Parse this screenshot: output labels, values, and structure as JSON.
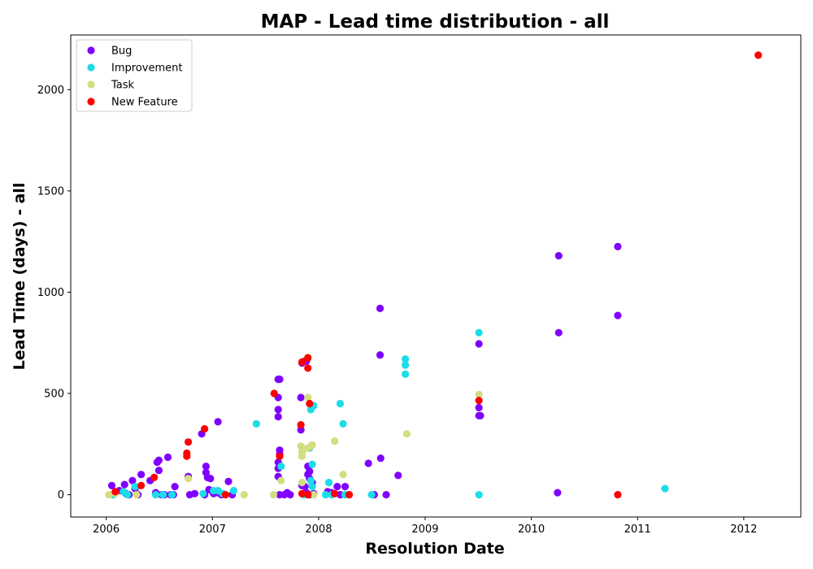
{
  "chart_data": {
    "type": "scatter",
    "title": "MAP - Lead time distribution - all",
    "xlabel": "Resolution Date",
    "ylabel": "Lead Time (days) - all",
    "xlim": [
      "2005-09-01",
      "2012-07-15"
    ],
    "ylim": [
      -110,
      2270
    ],
    "x_ticks": [
      "2006",
      "2007",
      "2008",
      "2009",
      "2010",
      "2011",
      "2012"
    ],
    "y_ticks": [
      "0",
      "500",
      "1000",
      "1500",
      "2000"
    ],
    "y_tick_values": [
      0,
      500,
      1000,
      1500,
      2000
    ],
    "grid": false,
    "legend_position": "top-left",
    "series": [
      {
        "name": "Bug",
        "color": "#8000ff",
        "points": [
          [
            "2006-01-20",
            45
          ],
          [
            "2006-02-15",
            20
          ],
          [
            "2006-03-05",
            50
          ],
          [
            "2006-03-10",
            5
          ],
          [
            "2006-03-20",
            0
          ],
          [
            "2006-04-01",
            70
          ],
          [
            "2006-04-10",
            30
          ],
          [
            "2006-04-20",
            0
          ],
          [
            "2006-05-01",
            100
          ],
          [
            "2006-06-01",
            70
          ],
          [
            "2006-06-20",
            10
          ],
          [
            "2006-06-25",
            160
          ],
          [
            "2006-07-01",
            170
          ],
          [
            "2006-07-01",
            120
          ],
          [
            "2006-07-10",
            0
          ],
          [
            "2006-07-20",
            0
          ],
          [
            "2006-08-01",
            185
          ],
          [
            "2006-08-10",
            0
          ],
          [
            "2006-08-20",
            0
          ],
          [
            "2006-08-25",
            40
          ],
          [
            "2006-10-10",
            90
          ],
          [
            "2006-10-15",
            0
          ],
          [
            "2006-11-01",
            5
          ],
          [
            "2006-11-25",
            300
          ],
          [
            "2006-12-05",
            0
          ],
          [
            "2006-12-10",
            140
          ],
          [
            "2006-12-10",
            110
          ],
          [
            "2006-12-15",
            85
          ],
          [
            "2006-12-20",
            25
          ],
          [
            "2006-12-25",
            80
          ],
          [
            "2007-01-05",
            5
          ],
          [
            "2007-01-20",
            360
          ],
          [
            "2007-01-20",
            10
          ],
          [
            "2007-02-01",
            0
          ],
          [
            "2007-02-25",
            65
          ],
          [
            "2007-03-10",
            0
          ],
          [
            "2007-08-15",
            570
          ],
          [
            "2007-08-20",
            570
          ],
          [
            "2007-08-15",
            480
          ],
          [
            "2007-08-15",
            420
          ],
          [
            "2007-08-15",
            385
          ],
          [
            "2007-08-20",
            220
          ],
          [
            "2007-08-20",
            200
          ],
          [
            "2007-08-15",
            160
          ],
          [
            "2007-08-15",
            130
          ],
          [
            "2007-08-15",
            90
          ],
          [
            "2007-08-20",
            0
          ],
          [
            "2007-09-05",
            0
          ],
          [
            "2007-09-15",
            10
          ],
          [
            "2007-09-25",
            0
          ],
          [
            "2007-11-01",
            320
          ],
          [
            "2007-11-01",
            480
          ],
          [
            "2007-11-05",
            650
          ],
          [
            "2007-11-15",
            660
          ],
          [
            "2007-11-20",
            660
          ],
          [
            "2007-11-25",
            140
          ],
          [
            "2007-11-25",
            100
          ],
          [
            "2007-12-01",
            115
          ],
          [
            "2007-12-01",
            80
          ],
          [
            "2007-11-05",
            45
          ],
          [
            "2007-11-15",
            40
          ],
          [
            "2007-11-20",
            10
          ],
          [
            "2007-12-01",
            0
          ],
          [
            "2007-12-10",
            60
          ],
          [
            "2007-12-15",
            5
          ],
          [
            "2008-02-01",
            15
          ],
          [
            "2008-02-15",
            10
          ],
          [
            "2008-03-05",
            40
          ],
          [
            "2008-03-15",
            0
          ],
          [
            "2008-04-01",
            40
          ],
          [
            "2008-06-20",
            155
          ],
          [
            "2008-07-10",
            0
          ],
          [
            "2008-07-30",
            920
          ],
          [
            "2008-07-30",
            690
          ],
          [
            "2008-08-01",
            180
          ],
          [
            "2008-08-20",
            0
          ],
          [
            "2008-09-30",
            95
          ],
          [
            "2009-07-05",
            745
          ],
          [
            "2009-07-05",
            430
          ],
          [
            "2009-07-05",
            390
          ],
          [
            "2009-07-10",
            390
          ],
          [
            "2010-04-05",
            1180
          ],
          [
            "2010-04-05",
            800
          ],
          [
            "2010-04-01",
            10
          ],
          [
            "2010-10-25",
            1225
          ],
          [
            "2010-10-25",
            885
          ]
        ]
      },
      {
        "name": "Improvement",
        "color": "#1cdce8",
        "points": [
          [
            "2006-01-25",
            0
          ],
          [
            "2006-03-01",
            15
          ],
          [
            "2006-03-15",
            0
          ],
          [
            "2006-04-10",
            40
          ],
          [
            "2006-06-20",
            0
          ],
          [
            "2006-07-15",
            0
          ],
          [
            "2006-08-15",
            0
          ],
          [
            "2006-11-30",
            5
          ],
          [
            "2007-01-05",
            20
          ],
          [
            "2007-01-20",
            20
          ],
          [
            "2007-02-05",
            5
          ],
          [
            "2007-03-15",
            20
          ],
          [
            "2007-06-01",
            350
          ],
          [
            "2007-08-25",
            140
          ],
          [
            "2007-11-10",
            0
          ],
          [
            "2007-12-05",
            420
          ],
          [
            "2007-12-01",
            230
          ],
          [
            "2007-12-15",
            440
          ],
          [
            "2007-12-10",
            150
          ],
          [
            "2007-12-05",
            70
          ],
          [
            "2007-12-10",
            40
          ],
          [
            "2008-01-25",
            0
          ],
          [
            "2008-02-05",
            60
          ],
          [
            "2008-02-15",
            0
          ],
          [
            "2008-03-15",
            450
          ],
          [
            "2008-03-25",
            350
          ],
          [
            "2008-04-01",
            0
          ],
          [
            "2008-07-01",
            0
          ],
          [
            "2008-10-25",
            670
          ],
          [
            "2008-10-25",
            640
          ],
          [
            "2008-10-25",
            595
          ],
          [
            "2009-07-05",
            800
          ],
          [
            "2009-07-05",
            0
          ],
          [
            "2011-04-05",
            30
          ]
        ]
      },
      {
        "name": "Task",
        "color": "#d4dd80",
        "points": [
          [
            "2006-01-10",
            0
          ],
          [
            "2006-02-01",
            5
          ],
          [
            "2006-04-15",
            0
          ],
          [
            "2006-10-10",
            80
          ],
          [
            "2007-04-20",
            0
          ],
          [
            "2007-07-30",
            0
          ],
          [
            "2007-08-25",
            70
          ],
          [
            "2007-11-01",
            240
          ],
          [
            "2007-11-05",
            210
          ],
          [
            "2007-11-05",
            190
          ],
          [
            "2007-11-05",
            60
          ],
          [
            "2007-11-25",
            480
          ],
          [
            "2007-11-25",
            230
          ],
          [
            "2007-12-05",
            240
          ],
          [
            "2007-12-10",
            245
          ],
          [
            "2007-12-15",
            0
          ],
          [
            "2007-11-25",
            680
          ],
          [
            "2008-02-25",
            265
          ],
          [
            "2008-03-25",
            100
          ],
          [
            "2008-10-30",
            300
          ],
          [
            "2009-07-05",
            495
          ]
        ]
      },
      {
        "name": "New Feature",
        "color": "#ff0000",
        "points": [
          [
            "2006-02-01",
            15
          ],
          [
            "2006-05-01",
            45
          ],
          [
            "2006-06-15",
            85
          ],
          [
            "2006-10-05",
            205
          ],
          [
            "2006-10-05",
            190
          ],
          [
            "2006-10-10",
            260
          ],
          [
            "2006-12-05",
            325
          ],
          [
            "2007-02-15",
            0
          ],
          [
            "2007-08-01",
            500
          ],
          [
            "2007-08-20",
            190
          ],
          [
            "2007-11-01",
            345
          ],
          [
            "2007-11-05",
            655
          ],
          [
            "2007-11-25",
            675
          ],
          [
            "2007-11-25",
            625
          ],
          [
            "2007-12-01",
            450
          ],
          [
            "2007-11-05",
            5
          ],
          [
            "2007-11-25",
            0
          ],
          [
            "2008-02-25",
            5
          ],
          [
            "2008-04-15",
            0
          ],
          [
            "2009-07-05",
            465
          ],
          [
            "2010-10-25",
            0
          ],
          [
            "2012-02-20",
            2170
          ]
        ]
      }
    ]
  }
}
